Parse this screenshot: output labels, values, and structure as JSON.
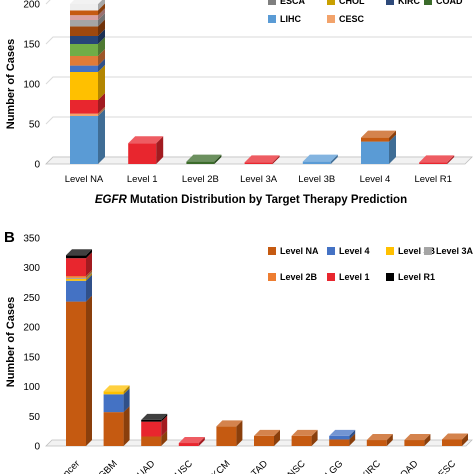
{
  "chart_data": [
    {
      "panel": "",
      "type": "bar",
      "stacked": true,
      "title_italic": "EGFR",
      "title_rest": " Mutation Distribution by Target Therapy Prediction",
      "ylabel": "Number of Cases",
      "xlabel": "",
      "ylim": [
        0,
        200
      ],
      "yticks": [
        0,
        50,
        100,
        150,
        200
      ],
      "grid": true,
      "legend_position": "top-right",
      "categories": [
        "Level NA",
        "Level 1",
        "Level 2B",
        "Level 3A",
        "Level 3B",
        "Level 4",
        "Level R1"
      ],
      "legend": [
        {
          "name": "ESCA",
          "color": "#7f7f7f"
        },
        {
          "name": "CHOL",
          "color": "#c9a000"
        },
        {
          "name": "KIRC",
          "color": "#2e4a7a"
        },
        {
          "name": "COAD",
          "color": "#3b6b2a"
        },
        {
          "name": "LIHC",
          "color": "#5a9bd5"
        },
        {
          "name": "CESC",
          "color": "#f2a36b"
        }
      ],
      "stacks": [
        [
          {
            "value": 60,
            "color": "#5a9bd5"
          },
          {
            "value": 3,
            "color": "#f2a36b"
          },
          {
            "value": 17,
            "color": "#e8262e"
          },
          {
            "value": 35,
            "color": "#ffc000"
          },
          {
            "value": 8,
            "color": "#4472c4"
          },
          {
            "value": 12,
            "color": "#e07b39"
          },
          {
            "value": 15,
            "color": "#70ad47"
          },
          {
            "value": 10,
            "color": "#264478"
          },
          {
            "value": 12,
            "color": "#9e480e"
          },
          {
            "value": 8,
            "color": "#a5a5a5"
          },
          {
            "value": 6,
            "color": "#d9a0a0"
          },
          {
            "value": 6,
            "color": "#c55a11"
          },
          {
            "value": 8,
            "color": "#eeeeee"
          }
        ],
        [
          {
            "value": 26,
            "color": "#e8262e"
          }
        ],
        [
          {
            "value": 3,
            "color": "#3b6b2a"
          }
        ],
        [
          {
            "value": 2,
            "color": "#e8262e"
          }
        ],
        [
          {
            "value": 3,
            "color": "#5a9bd5"
          }
        ],
        [
          {
            "value": 28,
            "color": "#5a9bd5"
          },
          {
            "value": 5,
            "color": "#c55a11"
          }
        ],
        [
          {
            "value": 2,
            "color": "#e8262e"
          }
        ]
      ]
    },
    {
      "panel": "B",
      "type": "bar",
      "stacked": true,
      "ylabel": "Number of Cases",
      "xlabel": "",
      "ylim": [
        0,
        350
      ],
      "yticks": [
        0,
        50,
        100,
        150,
        200,
        250,
        300,
        350
      ],
      "grid": false,
      "legend_position": "top-right",
      "categories": [
        "Pancancer",
        "GBM",
        "LUAD",
        "HNSC",
        "SKCM",
        "STAD",
        "HNSC",
        "LGG",
        "KIRC",
        "COAD",
        "CESC"
      ],
      "category_labels_visible": [
        "ncer",
        "GBM",
        "UAD",
        "USC",
        "KCM",
        "TAD",
        "NSC",
        "LGG",
        "KIRC",
        "OAD",
        "CESC"
      ],
      "legend": [
        {
          "name": "Level NA",
          "color": "#c55a11"
        },
        {
          "name": "Level 4",
          "color": "#4472c4"
        },
        {
          "name": "Level 3B",
          "color": "#ffc000"
        },
        {
          "name": "Level 3A",
          "color": "#a5a5a5"
        },
        {
          "name": "Level 2B",
          "color": "#ed7d31"
        },
        {
          "name": "Level 1",
          "color": "#e8262e"
        },
        {
          "name": "Level R1",
          "color": "#000000"
        }
      ],
      "stacks": [
        [
          {
            "value": 243,
            "color": "#c55a11"
          },
          {
            "value": 35,
            "color": "#4472c4"
          },
          {
            "value": 3,
            "color": "#ffc000"
          },
          {
            "value": 2,
            "color": "#a5a5a5"
          },
          {
            "value": 3,
            "color": "#ed7d31"
          },
          {
            "value": 30,
            "color": "#e8262e"
          },
          {
            "value": 5,
            "color": "#000000"
          }
        ],
        [
          {
            "value": 57,
            "color": "#c55a11"
          },
          {
            "value": 30,
            "color": "#4472c4"
          },
          {
            "value": 5,
            "color": "#ffc000"
          }
        ],
        [
          {
            "value": 16,
            "color": "#c55a11"
          },
          {
            "value": 25,
            "color": "#e8262e"
          },
          {
            "value": 3,
            "color": "#000000"
          }
        ],
        [
          {
            "value": 5,
            "color": "#e8262e"
          }
        ],
        [
          {
            "value": 33,
            "color": "#c55a11"
          }
        ],
        [
          {
            "value": 17,
            "color": "#c55a11"
          }
        ],
        [
          {
            "value": 17,
            "color": "#c55a11"
          }
        ],
        [
          {
            "value": 11,
            "color": "#c55a11"
          },
          {
            "value": 6,
            "color": "#4472c4"
          }
        ],
        [
          {
            "value": 10,
            "color": "#c55a11"
          }
        ],
        [
          {
            "value": 10,
            "color": "#c55a11"
          }
        ],
        [
          {
            "value": 11,
            "color": "#c55a11"
          }
        ]
      ]
    }
  ]
}
